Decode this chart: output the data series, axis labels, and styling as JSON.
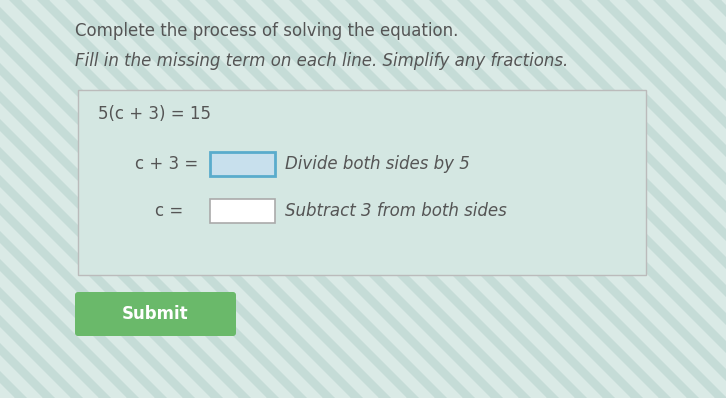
{
  "bg_color_base": "#c5dcd7",
  "bg_stripe_color": "#daeae6",
  "title1": "Complete the process of solving the equation.",
  "title2": "Fill in the missing term on each line. Simplify any fractions.",
  "title1_fontsize": 12,
  "title2_fontsize": 12,
  "box_bg": "#d4e7e2",
  "box_border": "#aaaaaa",
  "line1": "5(c + 3) = 15",
  "line2_left": "c + 3 =",
  "line2_right": "Divide both sides by 5",
  "line3_left": "c =",
  "line3_right": "Subtract 3 from both sides",
  "input_box1_border": "#5aaccc",
  "input_box1_bg": "#c8e0ed",
  "input_box2_border": "#aaaaaa",
  "input_box2_bg": "#ffffff",
  "submit_bg": "#6ab96a",
  "submit_text": "Submit",
  "submit_text_color": "#ffffff",
  "math_fontsize": 12,
  "hint_fontsize": 12,
  "line1_fontsize": 12,
  "text_color": "#555555"
}
